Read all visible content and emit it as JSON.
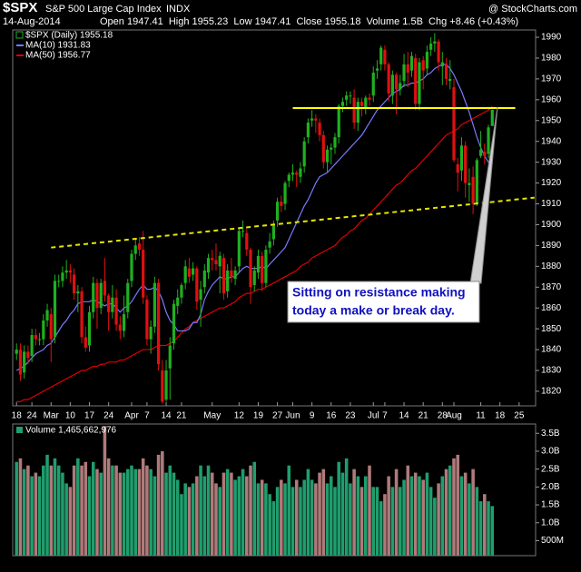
{
  "chart_data": {
    "type": "candlestick",
    "title": "$SPX",
    "subtitle": "S&P 500 Large Cap Index",
    "exchange": "INDX",
    "source": "@ StockCharts.com",
    "date": "14-Aug-2014",
    "quote": "Open 1947.41  High 1955.23  Low 1947.41  Close 1955.18  Volume 1.5B  Chg +8.46 (+0.43%)",
    "annotation": [
      "Sitting on resistance making",
      "today a make or break day."
    ],
    "xlim": [
      -1,
      135.3
    ],
    "xticks": [
      {
        "value": 0,
        "label": "18"
      },
      {
        "value": 4,
        "label": "24"
      },
      {
        "value": 9,
        "label": "Mar"
      },
      {
        "value": 14,
        "label": "10"
      },
      {
        "value": 19,
        "label": "17"
      },
      {
        "value": 24,
        "label": "24"
      },
      {
        "value": 30,
        "label": "Apr"
      },
      {
        "value": 34,
        "label": "7"
      },
      {
        "value": 39,
        "label": "14"
      },
      {
        "value": 43,
        "label": "21"
      },
      {
        "value": 51,
        "label": "May"
      },
      {
        "value": 58,
        "label": "12"
      },
      {
        "value": 63,
        "label": "19"
      },
      {
        "value": 68,
        "label": "27"
      },
      {
        "value": 72,
        "label": "Jun"
      },
      {
        "value": 77,
        "label": "9"
      },
      {
        "value": 82,
        "label": "16"
      },
      {
        "value": 87,
        "label": "23"
      },
      {
        "value": 93,
        "label": "Jul"
      },
      {
        "value": 96,
        "label": "7"
      },
      {
        "value": 101,
        "label": "14"
      },
      {
        "value": 106,
        "label": "21"
      },
      {
        "value": 111,
        "label": "28"
      },
      {
        "value": 114,
        "label": "Aug"
      },
      {
        "value": 121,
        "label": "11"
      },
      {
        "value": 126,
        "label": "18"
      },
      {
        "value": 131,
        "label": "25"
      }
    ],
    "ylim": [
      1813,
      1993.5
    ],
    "yticks": [
      1820,
      1830,
      1840,
      1850,
      1860,
      1870,
      1880,
      1890,
      1900,
      1910,
      1920,
      1930,
      1940,
      1950,
      1960,
      1970,
      1980,
      1990
    ],
    "open": [
      1838,
      1840,
      1829,
      1839,
      1837,
      1847,
      1845,
      1845,
      1854,
      1857,
      1846,
      1873,
      1873,
      1877,
      1878,
      1876,
      1867,
      1868,
      1846,
      1842,
      1858,
      1872,
      1860,
      1873,
      1866,
      1858,
      1865,
      1852,
      1849,
      1858,
      1873,
      1886,
      1891,
      1888,
      1864,
      1845,
      1851,
      1872,
      1830,
      1816,
      1831,
      1843,
      1861,
      1865,
      1872,
      1879,
      1876,
      1879,
      1864,
      1870,
      1877,
      1884,
      1883,
      1880,
      1884,
      1868,
      1878,
      1874,
      1880,
      1897,
      1896,
      1888,
      1871,
      1877,
      1885,
      1872,
      1889,
      1893,
      1902,
      1911,
      1910,
      1921,
      1924,
      1925,
      1923,
      1928,
      1942,
      1950,
      1951,
      1949,
      1943,
      1930,
      1936,
      1937,
      1942,
      1957,
      1960,
      1962,
      1961,
      1949,
      1959,
      1956,
      1961,
      1962,
      1974,
      1977,
      1984,
      1977,
      1962,
      1972,
      1965,
      1969,
      1977,
      1974,
      1980,
      1958,
      1979,
      1975,
      1984,
      1987,
      1988,
      1976,
      1977,
      1969,
      1966,
      1929,
      1926,
      1938,
      1919,
      1923,
      1910,
      1933,
      1935,
      1934,
      1947.41
    ],
    "high": [
      1843,
      1843,
      1842,
      1842,
      1850,
      1850,
      1848,
      1857,
      1862,
      1860,
      1876,
      1876,
      1880,
      1883,
      1881,
      1879,
      1871,
      1870,
      1851,
      1861,
      1875,
      1874,
      1874,
      1884,
      1867,
      1871,
      1869,
      1856,
      1866,
      1874,
      1888,
      1893,
      1894,
      1897,
      1866,
      1854,
      1875,
      1874,
      1835,
      1835,
      1846,
      1864,
      1869,
      1872,
      1883,
      1884,
      1882,
      1880,
      1873,
      1881,
      1886,
      1888,
      1891,
      1887,
      1886,
      1881,
      1884,
      1880,
      1898,
      1902,
      1898,
      1889,
      1880,
      1888,
      1887,
      1890,
      1896,
      1902,
      1913,
      1914,
      1921,
      1925,
      1929,
      1926,
      1930,
      1942,
      1951,
      1955,
      1953,
      1951,
      1945,
      1938,
      1939,
      1944,
      1958,
      1961,
      1964,
      1964,
      1965,
      1961,
      1961,
      1962,
      1963,
      1976,
      1979,
      1986,
      1986,
      1978,
      1974,
      1973,
      1972,
      1982,
      1983,
      1983,
      1982,
      1980,
      1981,
      1986,
      1990,
      1992,
      1989,
      1983,
      1980,
      1979,
      1970,
      1932,
      1942,
      1940,
      1927,
      1928,
      1932,
      1945,
      1939,
      1948,
      1955.23
    ],
    "low": [
      1835,
      1825,
      1826,
      1833,
      1834,
      1842,
      1842,
      1842,
      1851,
      1834,
      1843,
      1870,
      1870,
      1874,
      1872,
      1864,
      1858,
      1843,
      1839,
      1839,
      1855,
      1850,
      1857,
      1863,
      1849,
      1855,
      1849,
      1845,
      1846,
      1855,
      1870,
      1883,
      1885,
      1862,
      1842,
      1838,
      1848,
      1830,
      1814,
      1815,
      1816,
      1840,
      1857,
      1862,
      1869,
      1872,
      1873,
      1859,
      1851,
      1867,
      1874,
      1878,
      1878,
      1867,
      1864,
      1865,
      1872,
      1871,
      1877,
      1894,
      1885,
      1862,
      1868,
      1874,
      1868,
      1870,
      1886,
      1890,
      1899,
      1906,
      1907,
      1918,
      1921,
      1918,
      1920,
      1925,
      1939,
      1947,
      1944,
      1940,
      1927,
      1925,
      1929,
      1934,
      1939,
      1954,
      1957,
      1958,
      1946,
      1945,
      1952,
      1953,
      1957,
      1959,
      1970,
      1974,
      1974,
      1959,
      1958,
      1953,
      1962,
      1966,
      1966,
      1971,
      1955,
      1955,
      1965,
      1972,
      1981,
      1983,
      1974,
      1967,
      1967,
      1965,
      1930,
      1916,
      1921,
      1913,
      1911,
      1905,
      1909,
      1932,
      1929,
      1932,
      1947.41
    ],
    "close": [
      1840,
      1828,
      1839,
      1836,
      1847,
      1845,
      1845,
      1854,
      1859,
      1845,
      1873,
      1873,
      1877,
      1878,
      1877,
      1867,
      1868,
      1846,
      1841,
      1858,
      1872,
      1860,
      1872,
      1866,
      1858,
      1865,
      1852,
      1849,
      1857,
      1872,
      1886,
      1890,
      1888,
      1865,
      1845,
      1851,
      1872,
      1833,
      1815,
      1830,
      1842,
      1862,
      1865,
      1871,
      1880,
      1875,
      1879,
      1863,
      1869,
      1878,
      1884,
      1883,
      1881,
      1885,
      1867,
      1878,
      1875,
      1878,
      1897,
      1897,
      1888,
      1870,
      1878,
      1885,
      1872,
      1888,
      1892,
      1900,
      1911,
      1909,
      1920,
      1924,
      1925,
      1924,
      1927,
      1940,
      1949,
      1951,
      1950,
      1943,
      1930,
      1936,
      1937,
      1942,
      1957,
      1959,
      1962,
      1962,
      1949,
      1959,
      1957,
      1961,
      1960,
      1973,
      1975,
      1985,
      1977,
      1963,
      1972,
      1965,
      1968,
      1977,
      1973,
      1981,
      1958,
      1978,
      1974,
      1983,
      1987,
      1988,
      1978,
      1978,
      1970,
      1970,
      1931,
      1925,
      1938,
      1920,
      1920,
      1910,
      1931,
      1936,
      1933,
      1946.72,
      1955.18
    ],
    "series": [
      {
        "name": "$SPX (Daily) 1955.18",
        "color": "#1fb01f",
        "down_color": "#e01010"
      },
      {
        "name": "MA(10) 1931.83",
        "color": "#7a7aff",
        "values": [
          1830,
          1831,
          1832,
          1834,
          1836,
          1838,
          1839,
          1840,
          1842,
          1843,
          1846,
          1849,
          1852,
          1854,
          1857,
          1859,
          1862,
          1863,
          1863,
          1863,
          1864,
          1863,
          1862,
          1861,
          1862,
          1862,
          1860,
          1858,
          1860,
          1861,
          1863,
          1866,
          1869,
          1871,
          1869,
          1869,
          1870,
          1868,
          1864,
          1858,
          1854,
          1852,
          1849,
          1849,
          1849,
          1850,
          1853,
          1853,
          1857,
          1864,
          1868,
          1871,
          1873,
          1875,
          1874,
          1874,
          1875,
          1875,
          1877,
          1879,
          1880,
          1879,
          1879,
          1879,
          1880,
          1879,
          1881,
          1883,
          1885,
          1887,
          1889,
          1893,
          1897,
          1901,
          1905,
          1909,
          1912,
          1916,
          1920,
          1923,
          1924,
          1925,
          1927,
          1929,
          1931,
          1933,
          1935,
          1937,
          1939,
          1941,
          1943,
          1946,
          1949,
          1952,
          1955,
          1957,
          1959,
          1961,
          1963,
          1964,
          1965,
          1967,
          1967,
          1968,
          1968,
          1969,
          1970,
          1972,
          1973,
          1975,
          1976,
          1977,
          1977,
          1975,
          1972,
          1968,
          1964,
          1959,
          1954,
          1948,
          1942,
          1937,
          1933,
          1930,
          1931.83
        ]
      },
      {
        "name": "MA(50) 1956.77",
        "color": "#e00000",
        "values": [
          1815,
          1815,
          1816,
          1816,
          1817,
          1818,
          1819,
          1820,
          1821,
          1822,
          1823,
          1824,
          1825,
          1826,
          1827,
          1828,
          1829,
          1830,
          1830,
          1831,
          1832,
          1832,
          1833,
          1833,
          1834,
          1834,
          1834,
          1835,
          1835,
          1836,
          1837,
          1838,
          1839,
          1840,
          1840,
          1840,
          1841,
          1842,
          1842,
          1842,
          1843,
          1844,
          1846,
          1848,
          1850,
          1851,
          1853,
          1854,
          1855,
          1856,
          1857,
          1858,
          1859,
          1860,
          1860,
          1861,
          1862,
          1863,
          1865,
          1866,
          1867,
          1867,
          1868,
          1869,
          1869,
          1870,
          1871,
          1872,
          1873,
          1874,
          1875,
          1876,
          1877,
          1878,
          1880,
          1881,
          1882,
          1884,
          1885,
          1886,
          1887,
          1888,
          1889,
          1890,
          1892,
          1894,
          1895,
          1897,
          1898,
          1900,
          1902,
          1903,
          1905,
          1907,
          1909,
          1911,
          1913,
          1915,
          1917,
          1919,
          1920,
          1922,
          1924,
          1926,
          1927,
          1929,
          1931,
          1933,
          1935,
          1937,
          1939,
          1941,
          1943,
          1944,
          1945,
          1946,
          1948,
          1949,
          1950,
          1951,
          1952,
          1953,
          1954,
          1955,
          1956.77
        ]
      }
    ],
    "lines": [
      {
        "color": "#ffff00",
        "dashed": false,
        "points": [
          [
            72,
            1956
          ],
          [
            130,
            1956
          ]
        ]
      },
      {
        "color": "#e6e600",
        "dashed": true,
        "points": [
          [
            9,
            1889
          ],
          [
            135,
            1913
          ]
        ]
      }
    ],
    "volume": {
      "name": "Volume 1,465,662,976",
      "up_color": "#1f9e6e",
      "down_color": "#b07a7a",
      "ylim": [
        0.08,
        3.76
      ],
      "yticks": [
        {
          "value": 0.5,
          "label": "500M"
        },
        {
          "value": 1.0,
          "label": "1.0B"
        },
        {
          "value": 1.5,
          "label": "1.5B"
        },
        {
          "value": 2.0,
          "label": "2.0B"
        },
        {
          "value": 2.5,
          "label": "2.5B"
        },
        {
          "value": 3.0,
          "label": "3.0B"
        },
        {
          "value": 3.5,
          "label": "3.5B"
        }
      ],
      "values": [
        2.7,
        2.8,
        2.5,
        2.6,
        2.3,
        2.4,
        2.3,
        2.6,
        2.9,
        2.6,
        2.8,
        2.6,
        2.4,
        2.1,
        2.0,
        2.6,
        2.8,
        2.6,
        2.7,
        2.3,
        2.7,
        2.5,
        2.4,
        3.7,
        2.8,
        2.6,
        2.6,
        2.4,
        2.4,
        2.5,
        2.6,
        2.5,
        2.5,
        2.8,
        2.6,
        2.5,
        2.3,
        2.9,
        3.0,
        2.4,
        2.6,
        2.4,
        2.2,
        1.8,
        2.1,
        2.0,
        2.1,
        2.3,
        2.6,
        2.3,
        2.6,
        2.4,
        2.1,
        2.0,
        2.4,
        2.5,
        2.4,
        2.2,
        2.3,
        2.5,
        2.3,
        2.6,
        2.7,
        2.1,
        2.2,
        2.1,
        1.8,
        1.6,
        2.0,
        2.2,
        2.1,
        2.6,
        2.0,
        2.2,
        2.0,
        2.2,
        2.5,
        2.2,
        2.1,
        2.4,
        2.5,
        2.1,
        2.3,
        2.0,
        2.7,
        2.4,
        2.8,
        2.1,
        2.5,
        2.3,
        2.0,
        2.3,
        2.6,
        2.0,
        2.0,
        1.6,
        1.8,
        2.3,
        2.0,
        2.5,
        2.0,
        2.2,
        2.6,
        2.3,
        2.4,
        2.3,
        2.2,
        2.4,
        2.0,
        1.7,
        2.1,
        2.3,
        2.5,
        2.6,
        2.8,
        2.9,
        2.3,
        2.4,
        2.1,
        2.5,
        2.0,
        1.6,
        1.8,
        1.6,
        1.465662976
      ]
    }
  }
}
